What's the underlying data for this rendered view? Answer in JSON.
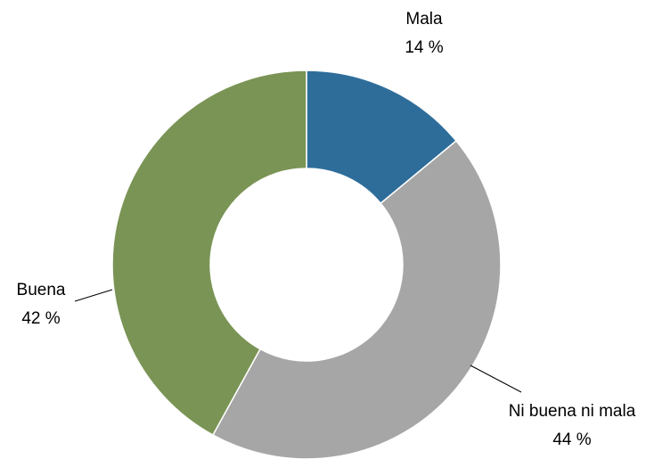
{
  "chart_data": {
    "type": "pie",
    "donut": true,
    "categories": [
      "Mala",
      "Ni buena ni mala",
      "Buena"
    ],
    "values": [
      14,
      44,
      42
    ],
    "value_labels": [
      "14 %",
      "44 %",
      "42 %"
    ],
    "colors": [
      "#2e6d9a",
      "#a6a6a6",
      "#7a9455"
    ]
  }
}
